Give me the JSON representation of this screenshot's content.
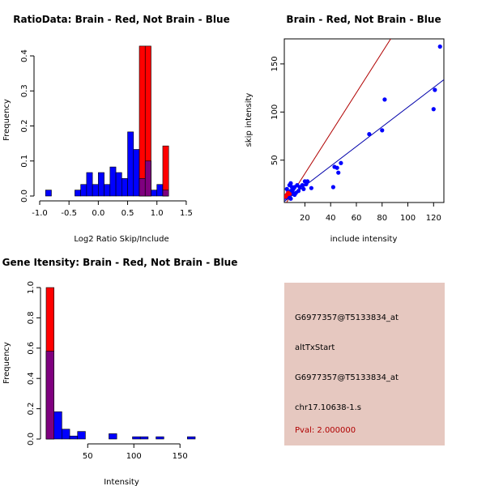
{
  "chart_data": [
    {
      "type": "histogram",
      "title": "RatioData: Brain - Red, Not Brain - Blue",
      "xlabel": "Log2 Ratio Skip/Include",
      "ylabel": "Frequency",
      "xlim": [
        -1.0,
        1.75
      ],
      "ylim": [
        0,
        0.4
      ],
      "xticks": [
        "-1.0",
        "-0.5",
        "0.0",
        "0.5",
        "1.0",
        "1.5"
      ],
      "yticks": [
        "0.0",
        "0.1",
        "0.2",
        "0.3",
        "0.4"
      ],
      "bin_width": 0.1,
      "series": [
        {
          "name": "Not Brain",
          "color": "#0000ff",
          "bins": [
            {
              "start": -0.9,
              "value": 0.017
            },
            {
              "start": -0.8,
              "value": 0.0
            },
            {
              "start": -0.7,
              "value": 0.0
            },
            {
              "start": -0.6,
              "value": 0.0
            },
            {
              "start": -0.5,
              "value": 0.0
            },
            {
              "start": -0.4,
              "value": 0.017
            },
            {
              "start": -0.3,
              "value": 0.033
            },
            {
              "start": -0.2,
              "value": 0.067
            },
            {
              "start": -0.1,
              "value": 0.033
            },
            {
              "start": 0.0,
              "value": 0.067
            },
            {
              "start": 0.1,
              "value": 0.033
            },
            {
              "start": 0.2,
              "value": 0.083
            },
            {
              "start": 0.3,
              "value": 0.067
            },
            {
              "start": 0.4,
              "value": 0.05
            },
            {
              "start": 0.5,
              "value": 0.183
            },
            {
              "start": 0.6,
              "value": 0.133
            },
            {
              "start": 0.7,
              "value": 0.05
            },
            {
              "start": 0.8,
              "value": 0.1
            },
            {
              "start": 0.9,
              "value": 0.017
            },
            {
              "start": 1.0,
              "value": 0.033
            },
            {
              "start": 1.1,
              "value": 0.017
            }
          ]
        },
        {
          "name": "Brain",
          "color": "#ff0000",
          "bins": [
            {
              "start": 0.7,
              "value": 0.428
            },
            {
              "start": 0.8,
              "value": 0.428
            },
            {
              "start": 1.1,
              "value": 0.143
            }
          ]
        }
      ]
    },
    {
      "type": "scatter",
      "title": "Brain - Red, Not Brain - Blue",
      "xlabel": "include intensity",
      "ylabel": "skip intensity",
      "xlim": [
        4,
        128
      ],
      "ylim": [
        6,
        176
      ],
      "xticks": [
        20,
        40,
        60,
        80,
        100,
        120
      ],
      "yticks": [
        50,
        100,
        150
      ],
      "series": [
        {
          "name": "Not Brain",
          "color": "#0000ff",
          "points": [
            [
              6,
              12
            ],
            [
              7,
              14
            ],
            [
              8,
              16
            ],
            [
              9,
              18
            ],
            [
              9,
              26
            ],
            [
              10,
              22
            ],
            [
              11,
              15
            ],
            [
              12,
              14
            ],
            [
              14,
              24
            ],
            [
              15,
              18
            ],
            [
              16,
              22
            ],
            [
              18,
              24
            ],
            [
              19,
              20
            ],
            [
              20,
              28
            ],
            [
              21,
              25
            ],
            [
              22,
              28
            ],
            [
              25,
              21
            ],
            [
              42,
              22
            ],
            [
              43,
              43
            ],
            [
              45,
              42
            ],
            [
              46,
              37
            ],
            [
              48,
              47
            ],
            [
              70,
              77
            ],
            [
              80,
              81
            ],
            [
              82,
              113
            ],
            [
              120,
              103
            ],
            [
              121,
              123
            ],
            [
              125,
              168
            ],
            [
              5,
              11
            ],
            [
              6,
              20
            ],
            [
              7,
              17
            ],
            [
              8,
              12
            ],
            [
              8,
              24
            ],
            [
              9,
              10
            ],
            [
              10,
              18
            ],
            [
              11,
              20
            ],
            [
              12,
              22
            ],
            [
              13,
              16
            ]
          ]
        },
        {
          "name": "Brain",
          "color": "#ff0000",
          "points": [
            [
              5,
              12
            ],
            [
              6,
              14
            ],
            [
              7,
              16
            ],
            [
              8,
              15
            ]
          ]
        }
      ],
      "lines": [
        {
          "name": "brain-fit",
          "color": "#b00000",
          "slope": 2.1,
          "intercept": -6
        },
        {
          "name": "not-brain-fit",
          "color": "#0000aa",
          "slope": 1.02,
          "intercept": 3
        }
      ]
    },
    {
      "type": "histogram",
      "title": "Gene Itensity: Brain - Red, Not Brain - Blue",
      "xlabel": "Intensity",
      "ylabel": "Frequency",
      "xlim": [
        5,
        170
      ],
      "ylim": [
        0,
        1.0
      ],
      "xticks": [
        50,
        100,
        150
      ],
      "yticks": [
        "0.0",
        "0.2",
        "0.4",
        "0.6",
        "0.8",
        "1.0"
      ],
      "bin_width": 8.5,
      "series": [
        {
          "name": "Not Brain",
          "color": "#0000ff",
          "bins": [
            {
              "start": 5,
              "value": 0.58
            },
            {
              "start": 13.5,
              "value": 0.18
            },
            {
              "start": 22,
              "value": 0.065
            },
            {
              "start": 30.5,
              "value": 0.02
            },
            {
              "start": 39,
              "value": 0.05
            },
            {
              "start": 47.5,
              "value": 0.0
            },
            {
              "start": 56,
              "value": 0.0
            },
            {
              "start": 64.5,
              "value": 0.0
            },
            {
              "start": 73,
              "value": 0.035
            },
            {
              "start": 81.5,
              "value": 0.0
            },
            {
              "start": 90,
              "value": 0.0
            },
            {
              "start": 98.5,
              "value": 0.015
            },
            {
              "start": 107,
              "value": 0.015
            },
            {
              "start": 115.5,
              "value": 0.0
            },
            {
              "start": 124,
              "value": 0.015
            },
            {
              "start": 132.5,
              "value": 0.0
            },
            {
              "start": 141,
              "value": 0.0
            },
            {
              "start": 149.5,
              "value": 0.0
            },
            {
              "start": 158,
              "value": 0.015
            }
          ]
        },
        {
          "name": "Brain",
          "color": "#ff0000",
          "bins": [
            {
              "start": 5,
              "value": 1.0
            }
          ]
        }
      ]
    }
  ],
  "info": {
    "probe_id": "G6977357@T5133834_at",
    "event_type": "altTxStart",
    "probe_id_repeat": "G6977357@T5133834_at",
    "cluster": "chr17.10638-1.s",
    "pval": "Pval: 2.000000"
  }
}
